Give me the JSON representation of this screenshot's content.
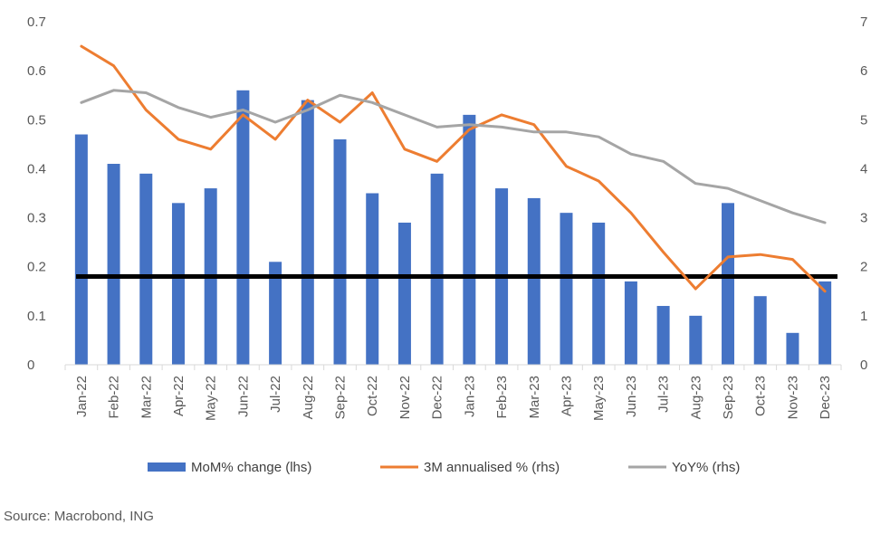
{
  "chart_data": {
    "type": "bar",
    "title": "",
    "categories": [
      "Jan-22",
      "Feb-22",
      "Mar-22",
      "Apr-22",
      "May-22",
      "Jun-22",
      "Jul-22",
      "Aug-22",
      "Sep-22",
      "Oct-22",
      "Nov-22",
      "Dec-22",
      "Jan-23",
      "Feb-23",
      "Mar-23",
      "Apr-23",
      "May-23",
      "Jun-23",
      "Jul-23",
      "Aug-23",
      "Sep-23",
      "Oct-23",
      "Nov-23",
      "Dec-23"
    ],
    "y_left": {
      "min": 0,
      "max": 0.7,
      "ticks": [
        "0",
        "0.1",
        "0.2",
        "0.3",
        "0.4",
        "0.5",
        "0.6",
        "0.7"
      ]
    },
    "y_right": {
      "min": 0,
      "max": 7,
      "ticks": [
        "0",
        "1",
        "2",
        "3",
        "4",
        "5",
        "6",
        "7"
      ]
    },
    "series": [
      {
        "name": "MoM% change (lhs)",
        "type": "bar",
        "axis": "left",
        "color": "#4472C4",
        "values": [
          0.47,
          0.41,
          0.39,
          0.33,
          0.36,
          0.56,
          0.21,
          0.54,
          0.46,
          0.35,
          0.29,
          0.39,
          0.51,
          0.36,
          0.34,
          0.31,
          0.29,
          0.17,
          0.12,
          0.1,
          0.33,
          0.14,
          0.065,
          0.17
        ]
      },
      {
        "name": "3M annualised % (rhs)",
        "type": "line",
        "axis": "right",
        "color": "#ED7D31",
        "values": [
          6.5,
          6.1,
          5.2,
          4.6,
          4.4,
          5.1,
          4.6,
          5.4,
          4.95,
          5.55,
          4.4,
          4.15,
          4.8,
          5.1,
          4.9,
          4.05,
          3.75,
          3.1,
          2.3,
          1.55,
          2.2,
          2.25,
          2.15,
          1.5
        ]
      },
      {
        "name": "YoY% (rhs)",
        "type": "line",
        "axis": "right",
        "color": "#A5A5A5",
        "values": [
          5.35,
          5.6,
          5.55,
          5.25,
          5.05,
          5.2,
          4.95,
          5.2,
          5.5,
          5.35,
          5.1,
          4.85,
          4.9,
          4.85,
          4.75,
          4.75,
          4.65,
          4.3,
          4.15,
          3.7,
          3.6,
          3.35,
          3.1,
          2.9
        ]
      }
    ],
    "reference_line": {
      "axis": "left",
      "value": 0.18,
      "color": "#000000"
    },
    "grid": false,
    "legend_position": "bottom"
  },
  "source": "Source: Macrobond, ING"
}
